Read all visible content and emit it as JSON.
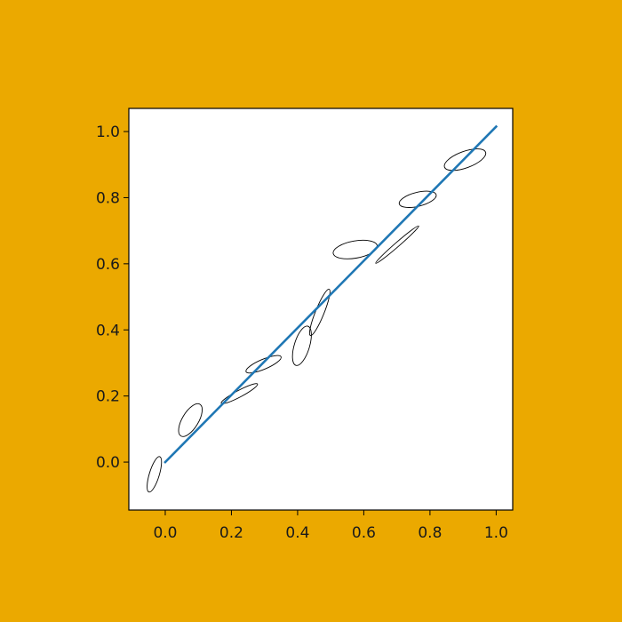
{
  "colors": {
    "background": "#EBA900",
    "plot_background": "#FFFFFF",
    "line": "#1F77B4",
    "ellipse_edge": "#000000",
    "axis": "#000000"
  },
  "chart_data": {
    "type": "line",
    "title": "",
    "xlabel": "",
    "ylabel": "",
    "xlim": [
      -0.11,
      1.05
    ],
    "ylim": [
      -0.145,
      1.07
    ],
    "grid": false,
    "legend": "none",
    "xticks": [
      0.0,
      0.2,
      0.4,
      0.6,
      0.8,
      1.0
    ],
    "xtick_labels": [
      "0.0",
      "0.2",
      "0.4",
      "0.6",
      "0.8",
      "1.0"
    ],
    "yticks": [
      0.0,
      0.2,
      0.4,
      0.6,
      0.8,
      1.0
    ],
    "ytick_labels": [
      "0.0",
      "0.2",
      "0.4",
      "0.6",
      "0.8",
      "1.0"
    ],
    "series": [
      {
        "x": [
          0.0,
          1.0
        ],
        "y": [
          0.0,
          1.015
        ]
      }
    ],
    "ellipses": [
      {
        "cx": -0.033,
        "cy": -0.037,
        "width": 0.112,
        "height": 0.03,
        "angle_deg": 73
      },
      {
        "cx": 0.076,
        "cy": 0.127,
        "width": 0.112,
        "height": 0.049,
        "angle_deg": 59
      },
      {
        "cx": 0.224,
        "cy": 0.207,
        "width": 0.124,
        "height": 0.02,
        "angle_deg": 28
      },
      {
        "cx": 0.297,
        "cy": 0.296,
        "width": 0.115,
        "height": 0.03,
        "angle_deg": 23
      },
      {
        "cx": 0.413,
        "cy": 0.352,
        "width": 0.124,
        "height": 0.046,
        "angle_deg": 73
      },
      {
        "cx": 0.467,
        "cy": 0.453,
        "width": 0.151,
        "height": 0.026,
        "angle_deg": 68
      },
      {
        "cx": 0.574,
        "cy": 0.643,
        "width": 0.135,
        "height": 0.052,
        "angle_deg": 10
      },
      {
        "cx": 0.701,
        "cy": 0.658,
        "width": 0.172,
        "height": 0.013,
        "angle_deg": 41
      },
      {
        "cx": 0.763,
        "cy": 0.795,
        "width": 0.115,
        "height": 0.042,
        "angle_deg": 14
      },
      {
        "cx": 0.906,
        "cy": 0.915,
        "width": 0.132,
        "height": 0.05,
        "angle_deg": 20
      }
    ]
  }
}
